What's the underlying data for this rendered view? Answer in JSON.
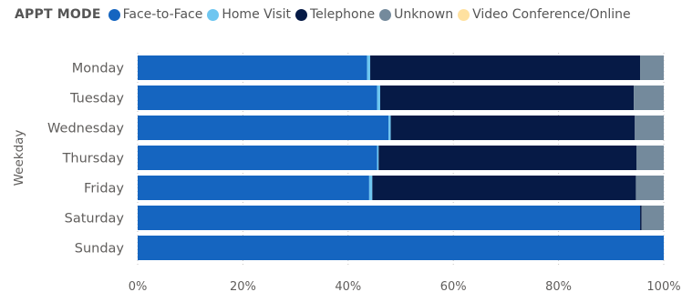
{
  "chart_data": {
    "type": "bar",
    "orientation": "horizontal",
    "stacked": "100%",
    "legend_title": "APPT MODE",
    "legend_position": "top-left",
    "ylabel": "Weekday",
    "categories": [
      "Monday",
      "Tuesday",
      "Wednesday",
      "Thursday",
      "Friday",
      "Saturday",
      "Sunday"
    ],
    "x_ticks": [
      "0%",
      "20%",
      "40%",
      "60%",
      "80%",
      "100%"
    ],
    "xlim": [
      0,
      100
    ],
    "grid": true,
    "series": [
      {
        "name": "Face-to-Face",
        "color": "#1565c0",
        "values": [
          43.6,
          45.5,
          47.7,
          45.5,
          44.0,
          95.5,
          100.0
        ]
      },
      {
        "name": "Home Visit",
        "color": "#6ec6f0",
        "values": [
          0.6,
          0.6,
          0.4,
          0.3,
          0.6,
          0.0,
          0.0
        ]
      },
      {
        "name": "Telephone",
        "color": "#061a46",
        "values": [
          51.3,
          48.2,
          46.4,
          49.0,
          50.1,
          0.3,
          0.0
        ]
      },
      {
        "name": "Unknown",
        "color": "#748a9c",
        "values": [
          4.5,
          5.7,
          5.5,
          5.2,
          5.3,
          4.2,
          0.0
        ]
      },
      {
        "name": "Video Conference/Online",
        "color": "#ffe1a0",
        "values": [
          0.0,
          0.0,
          0.0,
          0.0,
          0.0,
          0.0,
          0.0
        ]
      }
    ]
  }
}
